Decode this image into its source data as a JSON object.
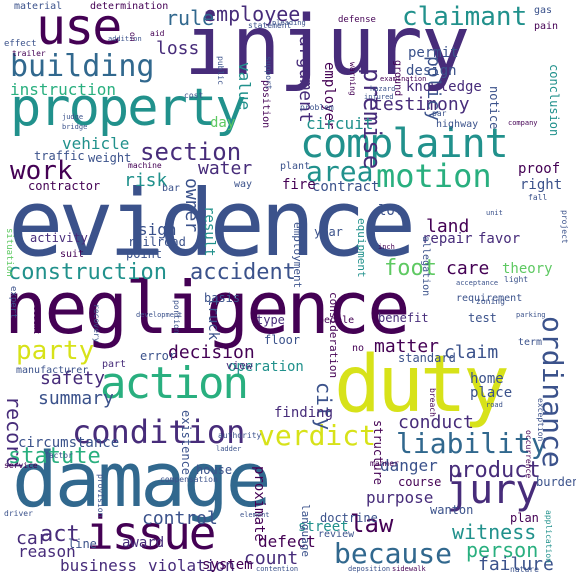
{
  "palette": {
    "purple": "#440154",
    "indigo": "#472c7a",
    "blue": "#3b528b",
    "slate": "#31688e",
    "teal": "#21918c",
    "sea": "#29af7f",
    "green": "#5ec962",
    "lime": "#addc30",
    "yellow": "#d7e219"
  },
  "words": {
    "injury": "injury",
    "evidence": "evidence",
    "negligence": "negligence",
    "damage": "damage",
    "duty": "duty",
    "property": "property",
    "use": "use",
    "complaint": "complaint",
    "action": "action",
    "issue": "issue",
    "jury": "jury",
    "building": "building",
    "claimant": "claimant",
    "employee": "employee",
    "rule": "rule",
    "loss": "loss",
    "instruction": "instruction",
    "testimony": "testimony",
    "section": "section",
    "work": "work",
    "motion": "motion",
    "area": "area",
    "construction": "construction",
    "accident": "accident",
    "foot": "foot",
    "care": "care",
    "party": "party",
    "condition": "condition",
    "verdict": "verdict",
    "liability": "liability",
    "ordinance": "ordinance",
    "decision": "decision",
    "safety": "safety",
    "summary": "summary",
    "matter": "matter",
    "claim": "claim",
    "record": "record",
    "conduct": "conduct",
    "product": "product",
    "danger": "danger",
    "because": "because",
    "law": "law",
    "witness": "witness",
    "person": "person",
    "act": "act",
    "reason": "reason",
    "count": "count",
    "control": "control",
    "defect": "defect",
    "business": "business",
    "violation": "violation",
    "system": "system",
    "failure": "failure",
    "premise": "premise",
    "policy": "policy",
    "argument": "argument",
    "value": "value",
    "employer": "employer",
    "circuit": "circuit",
    "vehicle": "vehicle",
    "risk": "risk",
    "owner": "owner",
    "water": "water",
    "land": "land",
    "sign": "sign",
    "activity": "activity",
    "year": "year",
    "lot": "lot",
    "repair": "repair",
    "favor": "favor",
    "truck": "truck",
    "result": "result",
    "city": "city",
    "finding": "finding",
    "operation": "operation",
    "purpose": "purpose",
    "home": "home",
    "place": "place",
    "standard": "standard",
    "circumstance": "circumstance",
    "statute": "statute",
    "street": "street",
    "award": "award",
    "line": "line",
    "car": "car",
    "contract": "contract",
    "fire": "fire",
    "right": "right",
    "proof": "proof",
    "permit": "permit",
    "design": "design",
    "knowledge": "knowledge",
    "notice": "notice",
    "conclusion": "conclusion",
    "day": "day",
    "traffic": "traffic",
    "weight": "weight",
    "contractor": "contractor",
    "railroad": "railroad",
    "point": "point",
    "suit": "suit",
    "basis": "basis",
    "type": "type",
    "floor": "floor",
    "view": "view",
    "error": "error",
    "part": "part",
    "manufacturer": "manufacturer",
    "theory": "theory",
    "requirement": "requirement",
    "benefit": "benefit",
    "test": "test",
    "wanton": "wanton",
    "plan": "plan",
    "burden": "burden",
    "course": "course",
    "doctrine": "doctrine",
    "review": "review",
    "language": "language",
    "house": "house",
    "existence": "existence",
    "proximate": "proximate",
    "structure": "structure",
    "consideration": "consideration",
    "people": "people",
    "term": "term",
    "allegation": "allegation",
    "equipment": "equipment",
    "employment": "employment",
    "position": "position",
    "plant": "plant",
    "machine": "machine",
    "bar": "bar",
    "way": "way",
    "highway": "highway",
    "ground": "ground",
    "determination": "determination",
    "material": "material",
    "effect": "effect",
    "trailer": "trailer",
    "defense": "defense",
    "statement": "statement",
    "gas": "gas",
    "pain": "pain",
    "public": "public",
    "support": "support",
    "warning": "warning",
    "cost": "cost",
    "problem": "problem",
    "company": "company",
    "situation": "situation",
    "expert": "expert",
    "decedent": "decedent",
    "factor": "factor",
    "service": "service",
    "driver": "driver",
    "provision": "provision",
    "compensation": "compensation",
    "authority": "authority",
    "manner": "manner",
    "application": "application",
    "deposition": "deposition",
    "sidewalk": "sidewalk",
    "nature": "nature",
    "exception": "exception",
    "occurrence": "occurrence",
    "breach": "breach",
    "project": "project",
    "zoning": "zoning",
    "parking": "parking",
    "unit": "unit",
    "inch": "inch",
    "light": "light",
    "acceptance": "acceptance",
    "no": "no",
    "elevator": "elevator",
    "recovery": "recovery",
    "portion": "portion",
    "bridge": "bridge",
    "judge": "judge",
    "fall": "fall",
    "addition": "addition",
    "aid": "aid",
    "pleading": "pleading",
    "examination": "examination",
    "hazard": "hazard",
    "injured": "injured",
    "ladder": "ladder",
    "plaintiffs": "plaintiffs",
    "contention": "contention",
    "element": "element",
    "customer": "customer",
    "school": "school",
    "reputation": "reputation",
    "device": "device",
    "development": "development",
    "road": "road",
    "court": "court",
    "order": "order",
    "par": "par",
    "person2": "dp",
    "on": "on"
  }
}
